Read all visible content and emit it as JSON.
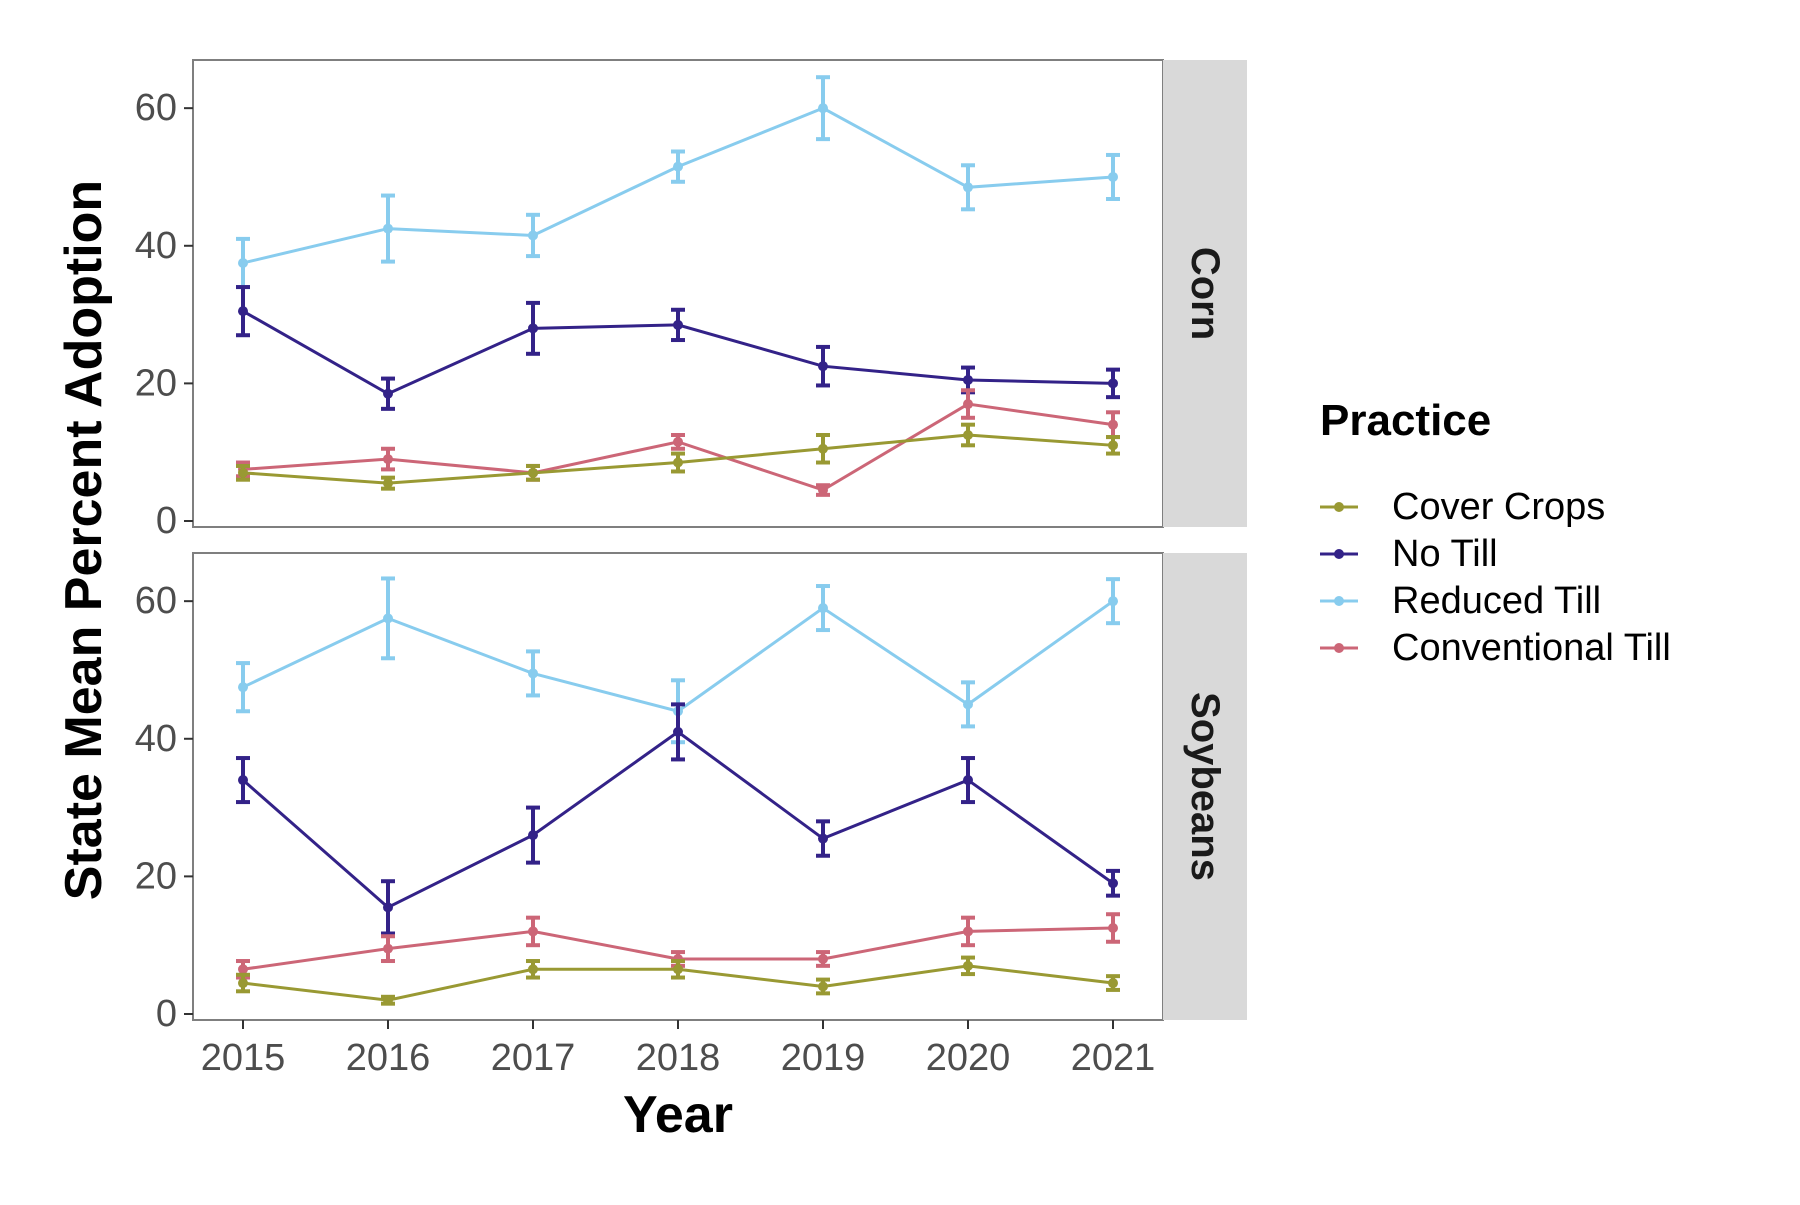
{
  "chart_data": {
    "type": "line",
    "xlabel": "Year",
    "ylabel": "State Mean Percent Adoption",
    "x": [
      "2015",
      "2016",
      "2017",
      "2018",
      "2019",
      "2020",
      "2021"
    ],
    "ylim": [
      0,
      67
    ],
    "yticks": [
      0,
      20,
      40,
      60
    ],
    "grid": false,
    "error_bars": true,
    "legend": {
      "title": "Practice",
      "placement": "right",
      "entries": [
        "Cover Crops",
        "No Till",
        "Reduced Till",
        "Conventional Till"
      ]
    },
    "colors": {
      "Cover Crops": "#999933",
      "No Till": "#332288",
      "Reduced Till": "#88ccee",
      "Conventional Till": "#cc6677"
    },
    "panels": [
      {
        "name": "Corn",
        "series": [
          {
            "name": "Reduced Till",
            "values": [
              37.5,
              42.5,
              41.5,
              51.5,
              60,
              48.5,
              50
            ],
            "errors": [
              3.5,
              4.8,
              3.0,
              2.2,
              4.5,
              3.2,
              3.2
            ]
          },
          {
            "name": "No Till",
            "values": [
              30.5,
              18.5,
              28,
              28.5,
              22.5,
              20.5,
              20
            ],
            "errors": [
              3.5,
              2.2,
              3.7,
              2.2,
              2.8,
              1.8,
              2.0
            ]
          },
          {
            "name": "Conventional Till",
            "values": [
              7.5,
              9,
              7,
              11.5,
              4.5,
              17,
              14
            ],
            "errors": [
              1.0,
              1.5,
              1.0,
              1.0,
              0.7,
              2.0,
              1.8
            ]
          },
          {
            "name": "Cover Crops",
            "values": [
              7,
              5.5,
              7,
              8.5,
              10.5,
              12.5,
              11
            ],
            "errors": [
              1.0,
              0.8,
              1.0,
              1.3,
              2.0,
              1.5,
              1.2
            ]
          }
        ]
      },
      {
        "name": "Soybeans",
        "series": [
          {
            "name": "Reduced Till",
            "values": [
              47.5,
              57.5,
              49.5,
              44,
              59,
              45,
              60
            ],
            "errors": [
              3.5,
              5.8,
              3.2,
              4.5,
              3.2,
              3.2,
              3.2
            ]
          },
          {
            "name": "No Till",
            "values": [
              34,
              15.5,
              26,
              41,
              25.5,
              34,
              19
            ],
            "errors": [
              3.2,
              3.8,
              4.0,
              4.0,
              2.5,
              3.2,
              1.8
            ]
          },
          {
            "name": "Conventional Till",
            "values": [
              6.5,
              9.5,
              12,
              8,
              8,
              12,
              12.5
            ],
            "errors": [
              1.2,
              1.8,
              2.0,
              1.0,
              1.0,
              2.0,
              2.0
            ]
          },
          {
            "name": "Cover Crops",
            "values": [
              4.5,
              2,
              6.5,
              6.5,
              4,
              7,
              4.5
            ],
            "errors": [
              1.2,
              0.5,
              1.2,
              1.2,
              1.0,
              1.2,
              1.0
            ]
          }
        ]
      }
    ]
  }
}
